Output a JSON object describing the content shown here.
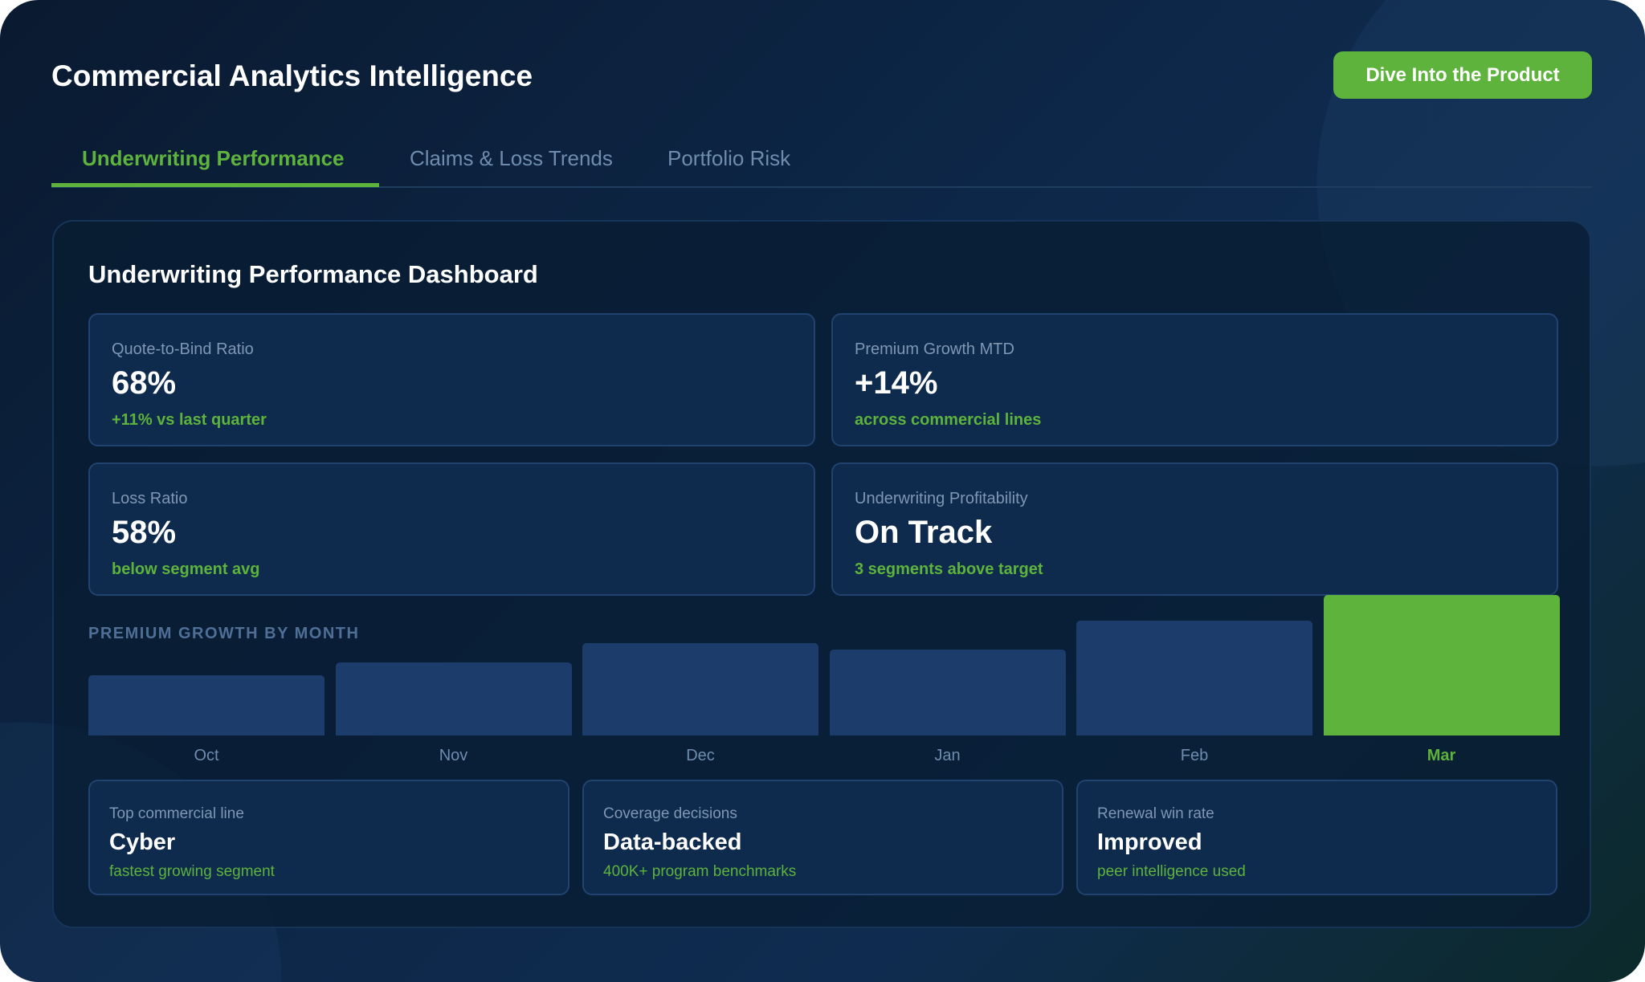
{
  "header": {
    "title": "Commercial Analytics Intelligence",
    "cta_label": "Dive Into the Product"
  },
  "tabs": [
    {
      "label": "Underwriting Performance",
      "active": true
    },
    {
      "label": "Claims & Loss Trends",
      "active": false
    },
    {
      "label": "Portfolio Risk",
      "active": false
    }
  ],
  "panel": {
    "title": "Underwriting Performance Dashboard"
  },
  "kpis": [
    {
      "label": "Quote-to-Bind Ratio",
      "value": "68%",
      "sub": "+11% vs last quarter"
    },
    {
      "label": "Premium Growth MTD",
      "value": "+14%",
      "sub": "across commercial lines"
    },
    {
      "label": "Loss Ratio",
      "value": "58%",
      "sub": "below segment avg"
    },
    {
      "label": "Underwriting Profitability",
      "value": "On Track",
      "sub": "3 segments above target"
    }
  ],
  "chart_data": {
    "type": "bar",
    "title": "PREMIUM GROWTH BY MONTH",
    "categories": [
      "Oct",
      "Nov",
      "Dec",
      "Jan",
      "Feb",
      "Mar"
    ],
    "values": [
      43,
      52,
      66,
      61,
      82,
      100
    ],
    "highlight": "Mar",
    "colors": {
      "bar": "#1c3d6b",
      "highlight": "#5db33c"
    }
  },
  "bottom_cards": [
    {
      "label": "Top commercial line",
      "value": "Cyber",
      "sub": "fastest growing segment"
    },
    {
      "label": "Coverage decisions",
      "value": "Data-backed",
      "sub": "400K+ program benchmarks"
    },
    {
      "label": "Renewal win rate",
      "value": "Improved",
      "sub": "peer intelligence used"
    }
  ],
  "colors": {
    "accent": "#5db33c",
    "background": "#0d2748",
    "card": "#0e2a4c"
  }
}
